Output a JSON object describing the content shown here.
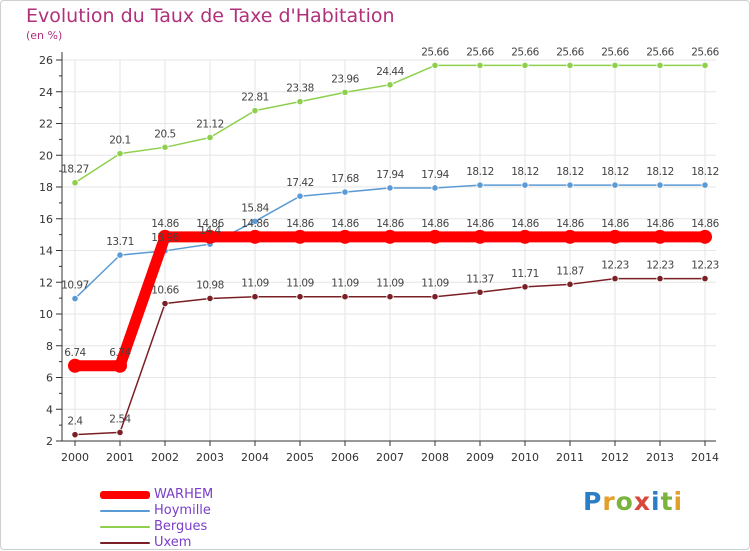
{
  "chart_data": {
    "type": "line",
    "title": "Evolution du Taux de Taxe d'Habitation",
    "subtitle": "(en %)",
    "x": [
      "2000",
      "2001",
      "2002",
      "2003",
      "2004",
      "2005",
      "2006",
      "2007",
      "2008",
      "2009",
      "2010",
      "2011",
      "2012",
      "2013",
      "2014"
    ],
    "ylim": [
      2,
      26
    ],
    "yticks": [
      2,
      4,
      6,
      8,
      10,
      12,
      14,
      16,
      18,
      20,
      22,
      24,
      26
    ],
    "grid": true,
    "legend_position": "bottom-left",
    "series": [
      {
        "name": "WARHEM",
        "color": "#ff0000",
        "values": [
          6.74,
          6.74,
          14.86,
          14.86,
          14.86,
          14.86,
          14.86,
          14.86,
          14.86,
          14.86,
          14.86,
          14.86,
          14.86,
          14.86,
          14.86
        ],
        "labels": [
          "6.74",
          "6.74",
          "14.86",
          "14.86",
          "14.86",
          "14.86",
          "14.86",
          "14.86",
          "14.86",
          "14.86",
          "14.86",
          "14.86",
          "14.86",
          "14.86",
          "14.86"
        ]
      },
      {
        "name": "Hoymille",
        "color": "#5b9bd5",
        "values": [
          10.97,
          13.71,
          13.98,
          14.4,
          15.84,
          17.42,
          17.68,
          17.94,
          17.94,
          18.12,
          18.12,
          18.12,
          18.12,
          18.12,
          18.12
        ],
        "labels": [
          "10.97",
          "13.71",
          "13.98",
          "14.4",
          "15.84",
          "17.42",
          "17.68",
          "17.94",
          "17.94",
          "18.12",
          "18.12",
          "18.12",
          "18.12",
          "18.12",
          "18.12"
        ]
      },
      {
        "name": "Bergues",
        "color": "#8ed04e",
        "values": [
          18.27,
          20.1,
          20.5,
          21.12,
          22.81,
          23.38,
          23.96,
          24.44,
          25.66,
          25.66,
          25.66,
          25.66,
          25.66,
          25.66,
          25.66
        ],
        "labels": [
          "18.27",
          "20.1",
          "20.5",
          "21.12",
          "22.81",
          "23.38",
          "23.96",
          "24.44",
          "25.66",
          "25.66",
          "25.66",
          "25.66",
          "25.66",
          "25.66",
          "25.66"
        ]
      },
      {
        "name": "Uxem",
        "color": "#7a1f25",
        "values": [
          2.4,
          2.54,
          10.66,
          10.98,
          11.09,
          11.09,
          11.09,
          11.09,
          11.09,
          11.37,
          11.71,
          11.87,
          12.23,
          12.23,
          12.23
        ],
        "labels": [
          "2.4",
          "2.54",
          "10.66",
          "10.98",
          "11.09",
          "11.09",
          "11.09",
          "11.09",
          "11.09",
          "11.37",
          "11.71",
          "11.87",
          "12.23",
          "12.23",
          "12.23"
        ]
      }
    ]
  },
  "logo": {
    "letters": [
      "P",
      "r",
      "o",
      "x",
      "i",
      "t",
      "i"
    ]
  }
}
